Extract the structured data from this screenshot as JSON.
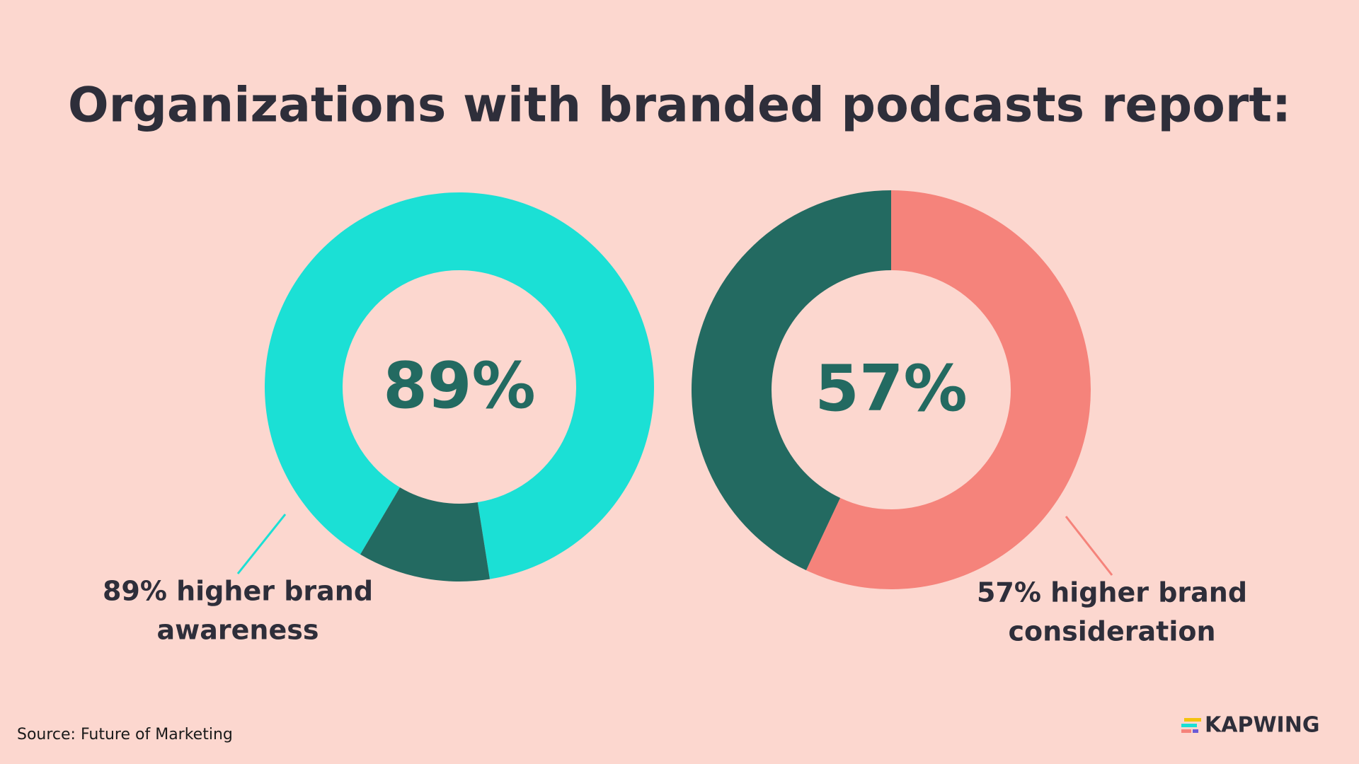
{
  "title": "Organizations with branded podcasts report:",
  "chart_data": [
    {
      "type": "donut",
      "values": [
        89,
        11
      ],
      "value_labels": [
        "89%",
        null
      ],
      "colors": [
        "#1be0d5",
        "#236a61"
      ],
      "annotation": [
        "89% higher brand",
        "awareness"
      ]
    },
    {
      "type": "donut",
      "values": [
        57,
        43
      ],
      "value_labels": [
        "57%",
        null
      ],
      "colors": [
        "#f5837b",
        "#236a61"
      ],
      "annotation": [
        "57% higher brand",
        "consideration"
      ]
    }
  ],
  "source": "Source: Future of Marketing",
  "logo": "KAPWING"
}
